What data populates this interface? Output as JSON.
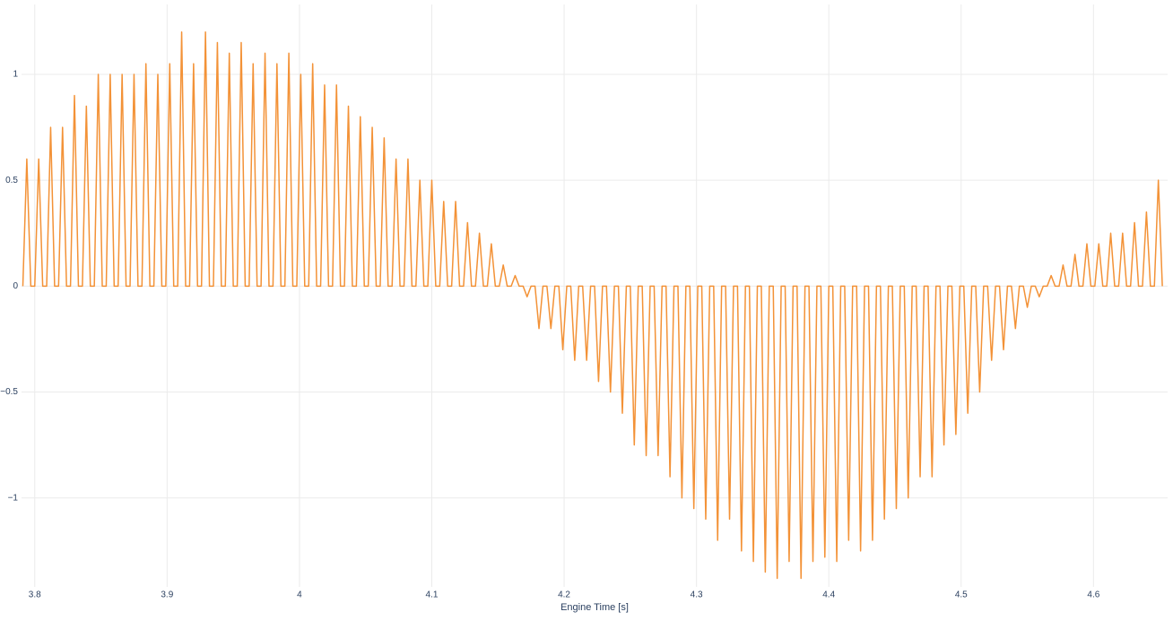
{
  "chart_data": {
    "type": "line",
    "x_label": "Engine Time [s]",
    "color": "#f39237",
    "grid": true,
    "xlim": [
      3.79,
      4.656
    ],
    "ylim": [
      -1.42,
      1.33
    ],
    "xticks": [
      3.8,
      3.9,
      4,
      4.1,
      4.2,
      4.3,
      4.4,
      4.5,
      4.6
    ],
    "yticks": [
      {
        "value": -1,
        "label": "−1"
      },
      {
        "value": -0.5,
        "label": "−0.5"
      },
      0,
      0.5,
      1
    ],
    "x": [
      3.791,
      3.794,
      3.797,
      3.8,
      3.803,
      3.806,
      3.809,
      3.812,
      3.815,
      3.818,
      3.821,
      3.824,
      3.827,
      3.83,
      3.833,
      3.836,
      3.839,
      3.842,
      3.845,
      3.848,
      3.851,
      3.854,
      3.857,
      3.86,
      3.863,
      3.866,
      3.869,
      3.872,
      3.875,
      3.878,
      3.881,
      3.884,
      3.887,
      3.89,
      3.893,
      3.896,
      3.899,
      3.902,
      3.905,
      3.908,
      3.911,
      3.914,
      3.917,
      3.92,
      3.923,
      3.926,
      3.929,
      3.932,
      3.935,
      3.938,
      3.941,
      3.944,
      3.947,
      3.95,
      3.953,
      3.956,
      3.959,
      3.962,
      3.965,
      3.968,
      3.971,
      3.974,
      3.977,
      3.98,
      3.983,
      3.986,
      3.989,
      3.992,
      3.995,
      3.998,
      4.001,
      4.004,
      4.007,
      4.01,
      4.013,
      4.016,
      4.019,
      4.022,
      4.025,
      4.028,
      4.031,
      4.034,
      4.037,
      4.04,
      4.043,
      4.046,
      4.049,
      4.052,
      4.055,
      4.058,
      4.061,
      4.064,
      4.067,
      4.07,
      4.073,
      4.076,
      4.079,
      4.082,
      4.085,
      4.088,
      4.091,
      4.094,
      4.097,
      4.1,
      4.103,
      4.106,
      4.109,
      4.112,
      4.115,
      4.118,
      4.121,
      4.124,
      4.127,
      4.13,
      4.133,
      4.136,
      4.139,
      4.142,
      4.145,
      4.148,
      4.151,
      4.154,
      4.157,
      4.16,
      4.163,
      4.166,
      4.169,
      4.172,
      4.175,
      4.178,
      4.181,
      4.184,
      4.187,
      4.19,
      4.193,
      4.196,
      4.199,
      4.202,
      4.205,
      4.208,
      4.211,
      4.214,
      4.217,
      4.22,
      4.223,
      4.226,
      4.229,
      4.232,
      4.235,
      4.238,
      4.241,
      4.244,
      4.247,
      4.25,
      4.253,
      4.256,
      4.259,
      4.262,
      4.265,
      4.268,
      4.271,
      4.274,
      4.277,
      4.28,
      4.283,
      4.286,
      4.289,
      4.292,
      4.295,
      4.298,
      4.301,
      4.304,
      4.307,
      4.31,
      4.313,
      4.316,
      4.319,
      4.322,
      4.325,
      4.328,
      4.331,
      4.334,
      4.337,
      4.34,
      4.343,
      4.346,
      4.349,
      4.352,
      4.355,
      4.358,
      4.361,
      4.364,
      4.367,
      4.37,
      4.373,
      4.376,
      4.379,
      4.382,
      4.385,
      4.388,
      4.391,
      4.394,
      4.397,
      4.4,
      4.403,
      4.406,
      4.409,
      4.412,
      4.415,
      4.418,
      4.421,
      4.424,
      4.427,
      4.43,
      4.433,
      4.436,
      4.439,
      4.442,
      4.445,
      4.448,
      4.451,
      4.454,
      4.457,
      4.46,
      4.463,
      4.466,
      4.469,
      4.472,
      4.475,
      4.478,
      4.481,
      4.484,
      4.487,
      4.49,
      4.493,
      4.496,
      4.499,
      4.502,
      4.505,
      4.508,
      4.511,
      4.514,
      4.517,
      4.52,
      4.523,
      4.526,
      4.529,
      4.532,
      4.535,
      4.538,
      4.541,
      4.544,
      4.547,
      4.55,
      4.553,
      4.556,
      4.559,
      4.562,
      4.565,
      4.568,
      4.571,
      4.574,
      4.577,
      4.58,
      4.583,
      4.586,
      4.589,
      4.592,
      4.595,
      4.598,
      4.601,
      4.604,
      4.607,
      4.61,
      4.613,
      4.616,
      4.619,
      4.622,
      4.625,
      4.628,
      4.631,
      4.634,
      4.637,
      4.64,
      4.643,
      4.646,
      4.649,
      4.652
    ],
    "values": [
      0,
      0.6,
      0,
      0,
      0.6,
      0,
      0,
      0.75,
      0,
      0,
      0.75,
      0,
      0,
      0.9,
      0,
      0,
      0.85,
      0,
      0,
      1,
      0,
      0,
      1,
      0,
      0,
      1,
      0,
      0,
      1,
      0,
      0,
      1.05,
      0,
      0,
      1,
      0,
      0,
      1.05,
      0,
      0,
      1.2,
      0,
      0,
      1.05,
      0,
      0,
      1.2,
      0,
      0,
      1.15,
      0,
      0,
      1.1,
      0,
      0,
      1.15,
      0,
      0,
      1.05,
      0,
      0,
      1.1,
      0,
      0,
      1.05,
      0,
      0,
      1.1,
      0,
      0,
      1,
      0,
      0,
      1.05,
      0,
      0,
      0.95,
      0,
      0,
      0.95,
      0,
      0,
      0.85,
      0,
      0,
      0.8,
      0,
      0,
      0.75,
      0,
      0,
      0.7,
      0,
      0,
      0.6,
      0,
      0,
      0.6,
      0,
      0,
      0.5,
      0,
      0,
      0.5,
      0,
      0,
      0.4,
      0,
      0,
      0.4,
      0,
      0,
      0.3,
      0,
      0,
      0.25,
      0,
      0,
      0.2,
      0,
      0,
      0.1,
      0,
      0,
      0.05,
      0,
      0,
      -0.05,
      0,
      0,
      -0.2,
      0,
      0,
      -0.2,
      0,
      0,
      -0.3,
      0,
      0,
      -0.35,
      0,
      0,
      -0.35,
      0,
      0,
      -0.45,
      0,
      0,
      -0.5,
      0,
      0,
      -0.6,
      0,
      0,
      -0.75,
      0,
      0,
      -0.8,
      0,
      0,
      -0.8,
      0,
      0,
      -0.9,
      0,
      0,
      -1,
      0,
      0,
      -1.05,
      0,
      0,
      -1.1,
      0,
      0,
      -1.2,
      0,
      0,
      -1.1,
      0,
      0,
      -1.25,
      0,
      0,
      -1.3,
      0,
      0,
      -1.35,
      0,
      0,
      -1.38,
      0,
      0,
      -1.3,
      0,
      0,
      -1.38,
      0,
      0,
      -1.3,
      0,
      0,
      -1.28,
      0,
      0,
      -1.3,
      0,
      0,
      -1.2,
      0,
      0,
      -1.25,
      0,
      0,
      -1.2,
      0,
      0,
      -1.1,
      0,
      0,
      -1.05,
      0,
      0,
      -1,
      0,
      0,
      -0.9,
      0,
      0,
      -0.9,
      0,
      0,
      -0.75,
      0,
      0,
      -0.7,
      0,
      0,
      -0.6,
      0,
      0,
      -0.5,
      0,
      0,
      -0.35,
      0,
      0,
      -0.3,
      0,
      0,
      -0.2,
      0,
      0,
      -0.1,
      0,
      0,
      -0.05,
      0,
      0,
      0.05,
      0,
      0,
      0.1,
      0,
      0,
      0.15,
      0,
      0,
      0.2,
      0,
      0,
      0.2,
      0,
      0,
      0.25,
      0,
      0,
      0.25,
      0,
      0,
      0.3,
      0,
      0,
      0.35,
      0,
      0,
      0.5,
      0
    ]
  }
}
